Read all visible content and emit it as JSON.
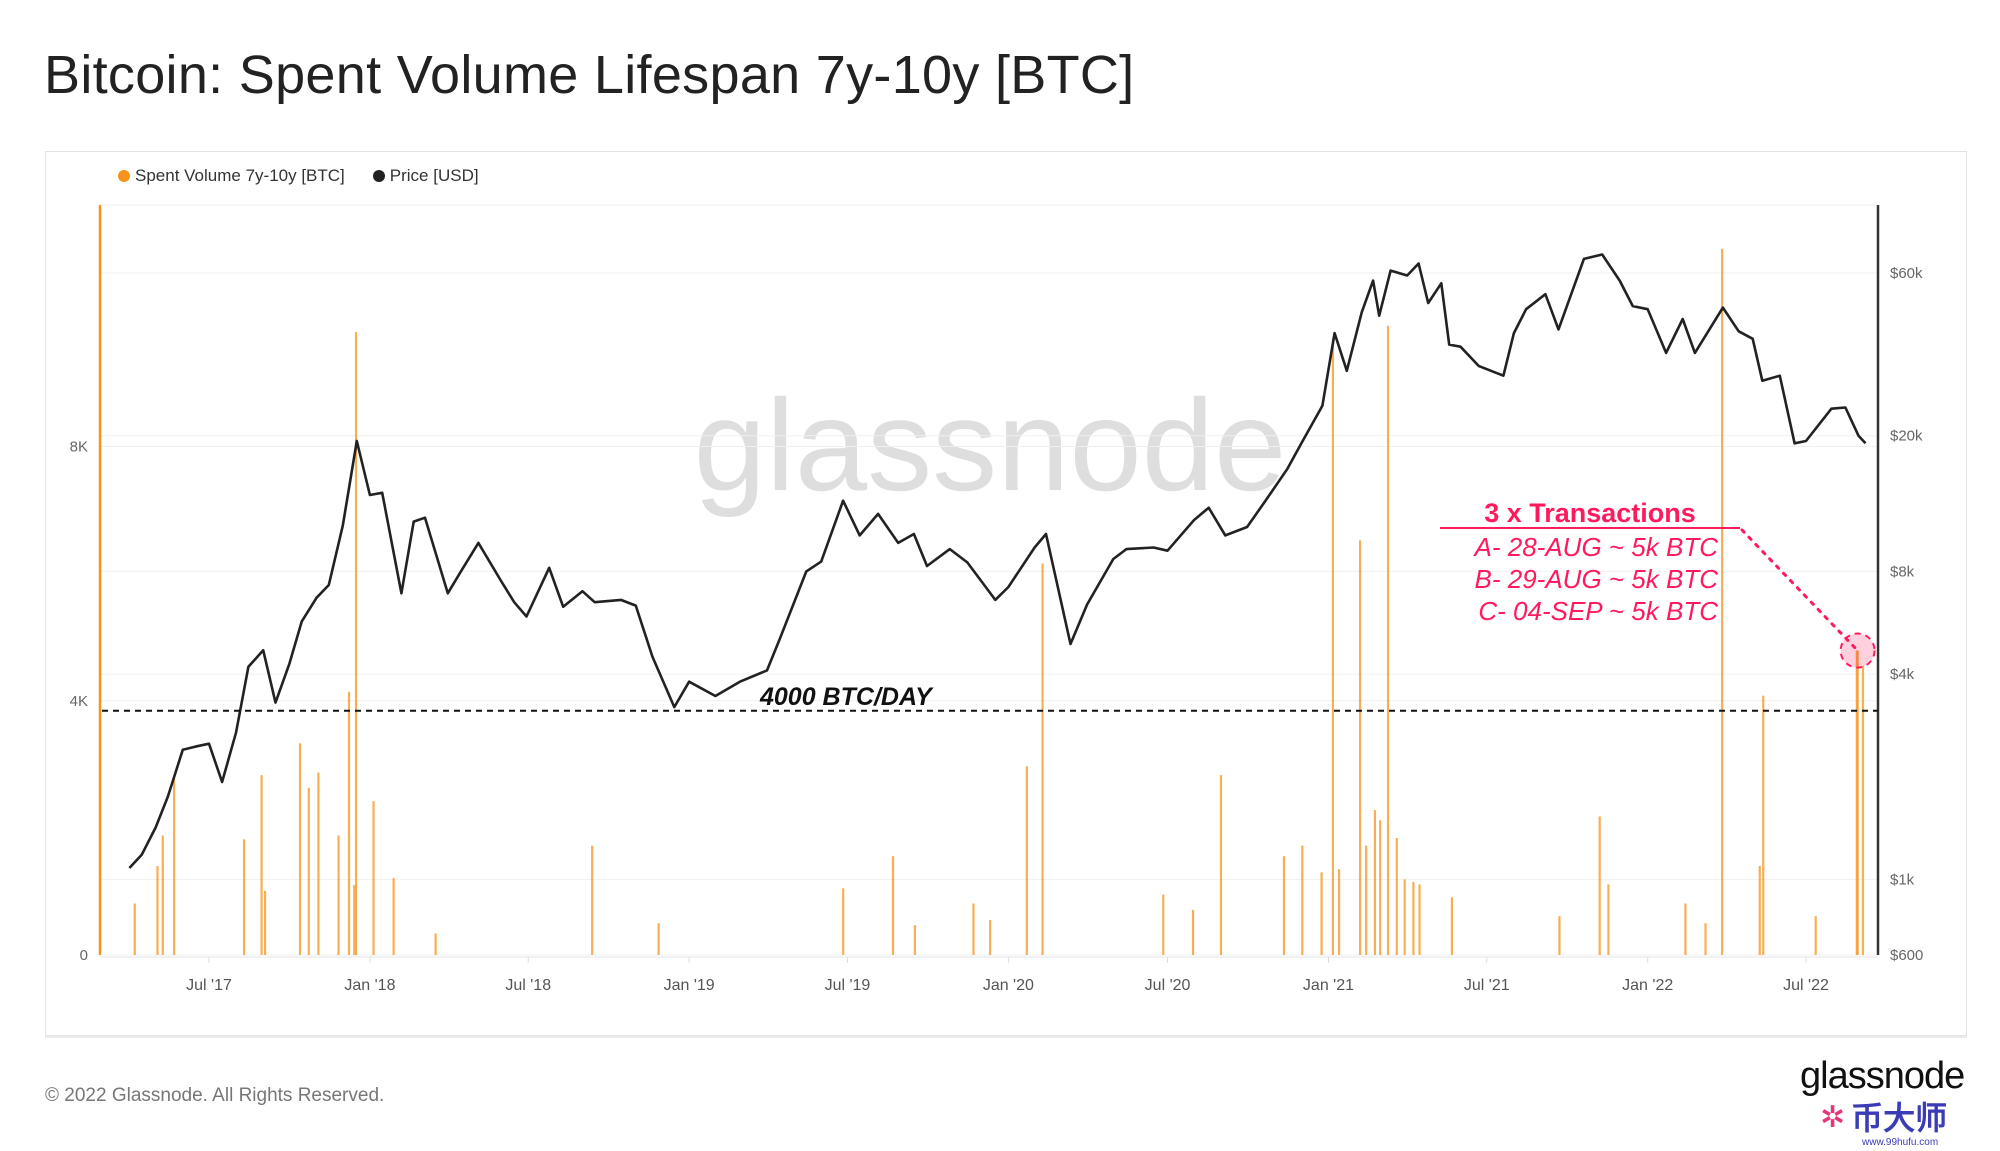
{
  "title": "Bitcoin: Spent Volume Lifespan 7y-10y [BTC]",
  "footer": "© 2022 Glassnode. All Rights Reserved.",
  "logo_text": "glassnode",
  "watermark": "glassnode",
  "corner_watermark": {
    "text": "币大师",
    "url": "www.99hufu.com"
  },
  "colors": {
    "volume": "#f7931a",
    "price": "#222222",
    "annotation": "#ff1a5e",
    "grid": "#f0f0f0"
  },
  "chart_data": {
    "type": "bar+line",
    "legend": [
      {
        "label": "Spent Volume 7y-10y [BTC]",
        "color": "#f7931a"
      },
      {
        "label": "Price [USD]",
        "color": "#222222"
      }
    ],
    "legend_position": "top-left",
    "grid": true,
    "x_range": [
      "2017-04-01",
      "2022-09-07"
    ],
    "x_ticks": [
      {
        "date": "2017-07-01",
        "label": "Jul '17"
      },
      {
        "date": "2018-01-01",
        "label": "Jan '18"
      },
      {
        "date": "2018-07-01",
        "label": "Jul '18"
      },
      {
        "date": "2019-01-01",
        "label": "Jan '19"
      },
      {
        "date": "2019-07-01",
        "label": "Jul '19"
      },
      {
        "date": "2020-01-01",
        "label": "Jan '20"
      },
      {
        "date": "2020-07-01",
        "label": "Jul '20"
      },
      {
        "date": "2021-01-01",
        "label": "Jan '21"
      },
      {
        "date": "2021-07-01",
        "label": "Jul '21"
      },
      {
        "date": "2022-01-01",
        "label": "Jan '22"
      },
      {
        "date": "2022-07-01",
        "label": "Jul '22"
      }
    ],
    "y_left": {
      "scale": "linear",
      "range": [
        0,
        11800
      ],
      "ticks": [
        {
          "value": 0,
          "label": "0"
        },
        {
          "value": 4000,
          "label": "4K"
        },
        {
          "value": 8000,
          "label": "8K"
        }
      ]
    },
    "y_right": {
      "scale": "log",
      "range": [
        600,
        95000
      ],
      "ticks": [
        {
          "value": 600,
          "label": "$600"
        },
        {
          "value": 1000,
          "label": "$1k"
        },
        {
          "value": 4000,
          "label": "$4k"
        },
        {
          "value": 8000,
          "label": "$8k"
        },
        {
          "value": 20000,
          "label": "$20k"
        },
        {
          "value": 60000,
          "label": "$60k"
        }
      ]
    },
    "series": [
      {
        "name": "Spent Volume 7y-10y [BTC]",
        "type": "bar",
        "axis": "left",
        "points": [
          [
            "2017-04-07",
            810
          ],
          [
            "2017-05-03",
            1400
          ],
          [
            "2017-05-09",
            1880
          ],
          [
            "2017-05-22",
            2770
          ],
          [
            "2017-08-10",
            1820
          ],
          [
            "2017-08-30",
            2830
          ],
          [
            "2017-09-03",
            1010
          ],
          [
            "2017-10-13",
            3330
          ],
          [
            "2017-10-23",
            2630
          ],
          [
            "2017-11-03",
            2870
          ],
          [
            "2017-11-26",
            1880
          ],
          [
            "2017-12-08",
            4140
          ],
          [
            "2017-12-14",
            1100
          ],
          [
            "2017-12-16",
            9800
          ],
          [
            "2018-01-05",
            2420
          ],
          [
            "2018-01-28",
            1210
          ],
          [
            "2018-03-17",
            340
          ],
          [
            "2018-09-12",
            1720
          ],
          [
            "2018-11-27",
            500
          ],
          [
            "2019-06-26",
            1050
          ],
          [
            "2019-08-22",
            1555
          ],
          [
            "2019-09-16",
            470
          ],
          [
            "2019-11-22",
            810
          ],
          [
            "2019-12-11",
            550
          ],
          [
            "2020-01-22",
            2970
          ],
          [
            "2020-02-09",
            6160
          ],
          [
            "2020-06-26",
            950
          ],
          [
            "2020-07-30",
            710
          ],
          [
            "2020-08-31",
            2830
          ],
          [
            "2020-11-11",
            1555
          ],
          [
            "2020-12-02",
            1720
          ],
          [
            "2020-12-24",
            1300
          ],
          [
            "2021-01-06",
            9700
          ],
          [
            "2021-01-13",
            1350
          ],
          [
            "2021-02-06",
            6525
          ],
          [
            "2021-02-13",
            1720
          ],
          [
            "2021-02-23",
            2280
          ],
          [
            "2021-03-01",
            2120
          ],
          [
            "2021-03-10",
            9900
          ],
          [
            "2021-03-20",
            1840
          ],
          [
            "2021-03-29",
            1190
          ],
          [
            "2021-04-08",
            1150
          ],
          [
            "2021-04-15",
            1110
          ],
          [
            "2021-05-22",
            910
          ],
          [
            "2021-09-22",
            610
          ],
          [
            "2021-11-07",
            2180
          ],
          [
            "2021-11-17",
            1110
          ],
          [
            "2022-02-13",
            810
          ],
          [
            "2022-03-08",
            500
          ],
          [
            "2022-03-27",
            11110
          ],
          [
            "2022-05-09",
            1400
          ],
          [
            "2022-05-13",
            4080
          ],
          [
            "2022-07-12",
            610
          ],
          [
            "2022-08-28",
            4790
          ],
          [
            "2022-08-29",
            4790
          ],
          [
            "2022-09-04",
            4550
          ]
        ]
      },
      {
        "name": "Price [USD]",
        "type": "line",
        "axis": "right",
        "points": [
          [
            "2017-04-01",
            1080
          ],
          [
            "2017-04-15",
            1180
          ],
          [
            "2017-05-01",
            1420
          ],
          [
            "2017-05-15",
            1750
          ],
          [
            "2017-06-01",
            2400
          ],
          [
            "2017-06-15",
            2450
          ],
          [
            "2017-07-01",
            2500
          ],
          [
            "2017-07-16",
            1930
          ],
          [
            "2017-08-01",
            2700
          ],
          [
            "2017-08-15",
            4200
          ],
          [
            "2017-09-01",
            4700
          ],
          [
            "2017-09-15",
            3300
          ],
          [
            "2017-10-01",
            4300
          ],
          [
            "2017-10-15",
            5700
          ],
          [
            "2017-11-01",
            6700
          ],
          [
            "2017-11-15",
            7300
          ],
          [
            "2017-12-01",
            10900
          ],
          [
            "2017-12-17",
            19300
          ],
          [
            "2018-01-01",
            13400
          ],
          [
            "2018-01-15",
            13600
          ],
          [
            "2018-02-06",
            6900
          ],
          [
            "2018-02-20",
            11200
          ],
          [
            "2018-03-05",
            11500
          ],
          [
            "2018-03-31",
            6900
          ],
          [
            "2018-04-15",
            8000
          ],
          [
            "2018-05-05",
            9700
          ],
          [
            "2018-05-31",
            7500
          ],
          [
            "2018-06-15",
            6500
          ],
          [
            "2018-06-29",
            5900
          ],
          [
            "2018-07-25",
            8200
          ],
          [
            "2018-08-10",
            6300
          ],
          [
            "2018-09-01",
            7000
          ],
          [
            "2018-09-15",
            6500
          ],
          [
            "2018-10-15",
            6600
          ],
          [
            "2018-11-01",
            6350
          ],
          [
            "2018-11-20",
            4500
          ],
          [
            "2018-12-15",
            3200
          ],
          [
            "2019-01-01",
            3800
          ],
          [
            "2019-01-31",
            3450
          ],
          [
            "2019-02-28",
            3800
          ],
          [
            "2019-03-31",
            4100
          ],
          [
            "2019-04-15",
            5100
          ],
          [
            "2019-05-15",
            8000
          ],
          [
            "2019-06-01",
            8550
          ],
          [
            "2019-06-26",
            12900
          ],
          [
            "2019-07-15",
            10200
          ],
          [
            "2019-08-05",
            11800
          ],
          [
            "2019-08-28",
            9700
          ],
          [
            "2019-09-15",
            10300
          ],
          [
            "2019-09-30",
            8300
          ],
          [
            "2019-10-26",
            9300
          ],
          [
            "2019-11-15",
            8500
          ],
          [
            "2019-12-17",
            6600
          ],
          [
            "2020-01-01",
            7200
          ],
          [
            "2020-01-31",
            9400
          ],
          [
            "2020-02-13",
            10300
          ],
          [
            "2020-03-12",
            4900
          ],
          [
            "2020-03-31",
            6400
          ],
          [
            "2020-04-30",
            8700
          ],
          [
            "2020-05-15",
            9300
          ],
          [
            "2020-06-15",
            9400
          ],
          [
            "2020-07-01",
            9200
          ],
          [
            "2020-07-31",
            11300
          ],
          [
            "2020-08-17",
            12300
          ],
          [
            "2020-09-05",
            10200
          ],
          [
            "2020-09-30",
            10800
          ],
          [
            "2020-10-21",
            12900
          ],
          [
            "2020-11-15",
            16000
          ],
          [
            "2020-12-01",
            19000
          ],
          [
            "2020-12-25",
            24500
          ],
          [
            "2021-01-08",
            40000
          ],
          [
            "2021-01-22",
            31000
          ],
          [
            "2021-02-08",
            46000
          ],
          [
            "2021-02-21",
            57000
          ],
          [
            "2021-02-28",
            45000
          ],
          [
            "2021-03-13",
            61000
          ],
          [
            "2021-04-01",
            59000
          ],
          [
            "2021-04-14",
            64000
          ],
          [
            "2021-04-25",
            49000
          ],
          [
            "2021-05-10",
            56000
          ],
          [
            "2021-05-19",
            37000
          ],
          [
            "2021-06-01",
            36500
          ],
          [
            "2021-06-22",
            32000
          ],
          [
            "2021-07-20",
            30000
          ],
          [
            "2021-08-01",
            40000
          ],
          [
            "2021-08-15",
            47000
          ],
          [
            "2021-09-06",
            52000
          ],
          [
            "2021-09-21",
            41000
          ],
          [
            "2021-10-20",
            66000
          ],
          [
            "2021-11-10",
            68000
          ],
          [
            "2021-11-30",
            57000
          ],
          [
            "2021-12-15",
            48000
          ],
          [
            "2022-01-01",
            47000
          ],
          [
            "2022-01-22",
            35000
          ],
          [
            "2022-02-10",
            44000
          ],
          [
            "2022-02-24",
            35000
          ],
          [
            "2022-03-28",
            47500
          ],
          [
            "2022-04-15",
            40500
          ],
          [
            "2022-05-01",
            38500
          ],
          [
            "2022-05-12",
            29000
          ],
          [
            "2022-06-01",
            30000
          ],
          [
            "2022-06-18",
            19000
          ],
          [
            "2022-07-01",
            19300
          ],
          [
            "2022-07-30",
            24000
          ],
          [
            "2022-08-15",
            24200
          ],
          [
            "2022-08-30",
            20000
          ],
          [
            "2022-09-07",
            19000
          ]
        ]
      }
    ],
    "reference_line": {
      "value": 4000,
      "axis": "left",
      "style": "dashed",
      "label": "4000 BTC/DAY"
    },
    "annotation": {
      "title": "3 x Transactions",
      "lines": [
        "A- 28-AUG ~ 5k BTC",
        "B- 29-AUG ~ 5k BTC",
        "C- 04-SEP ~ 5k BTC"
      ],
      "target_date": "2022-08-29",
      "target_value": 4790
    }
  }
}
